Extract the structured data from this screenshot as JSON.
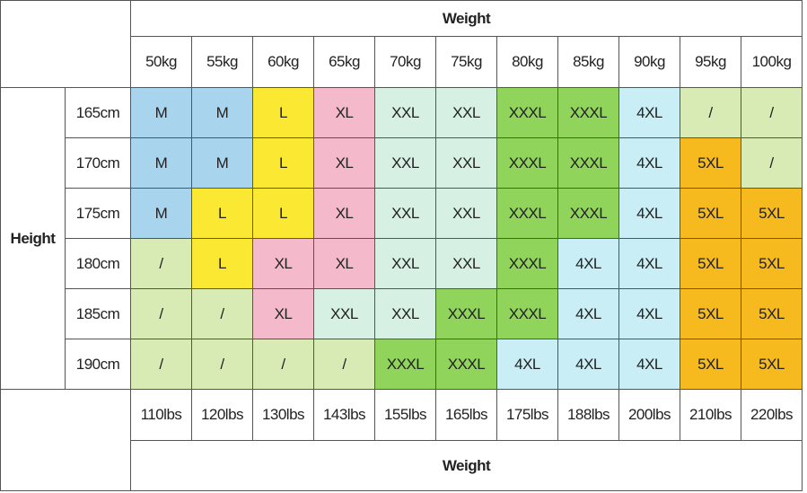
{
  "header": {
    "title": "Weight"
  },
  "kg": [
    "50kg",
    "55kg",
    "60kg",
    "65kg",
    "70kg",
    "75kg",
    "80kg",
    "85kg",
    "90kg",
    "95kg",
    "100kg"
  ],
  "row_label": "Height",
  "rows": [
    {
      "height": "165cm",
      "cells": [
        "M",
        "M",
        "L",
        "XL",
        "XXL",
        "XXL",
        "XXXL",
        "XXXL",
        "4XL",
        "/",
        "/"
      ]
    },
    {
      "height": "170cm",
      "cells": [
        "M",
        "M",
        "L",
        "XL",
        "XXL",
        "XXL",
        "XXXL",
        "XXXL",
        "4XL",
        "5XL",
        "/"
      ]
    },
    {
      "height": "175cm",
      "cells": [
        "M",
        "L",
        "L",
        "XL",
        "XXL",
        "XXL",
        "XXXL",
        "XXXL",
        "4XL",
        "5XL",
        "5XL"
      ]
    },
    {
      "height": "180cm",
      "cells": [
        "/",
        "L",
        "XL",
        "XL",
        "XXL",
        "XXL",
        "XXXL",
        "4XL",
        "4XL",
        "5XL",
        "5XL"
      ]
    },
    {
      "height": "185cm",
      "cells": [
        "/",
        "/",
        "XL",
        "XXL",
        "XXL",
        "XXXL",
        "XXXL",
        "4XL",
        "4XL",
        "5XL",
        "5XL"
      ]
    },
    {
      "height": "190cm",
      "cells": [
        "/",
        "/",
        "/",
        "/",
        "XXXL",
        "XXXL",
        "4XL",
        "4XL",
        "4XL",
        "5XL",
        "5XL"
      ]
    }
  ],
  "colors": {
    "M": "#a9d4ee",
    "L": "#fbe832",
    "XL": "#f5b9cc",
    "XXL": "#d6f0e3",
    "XXXL": "#90d45c",
    "4XL": "#c9eef5",
    "5XL": "#f6b91e",
    "/": "#d8ebb5"
  },
  "lbs": [
    "110lbs",
    "120lbs",
    "130lbs",
    "143lbs",
    "155lbs",
    "165lbs",
    "175lbs",
    "188lbs",
    "200lbs",
    "210lbs",
    "220lbs"
  ],
  "footer": {
    "title": "Weight"
  }
}
